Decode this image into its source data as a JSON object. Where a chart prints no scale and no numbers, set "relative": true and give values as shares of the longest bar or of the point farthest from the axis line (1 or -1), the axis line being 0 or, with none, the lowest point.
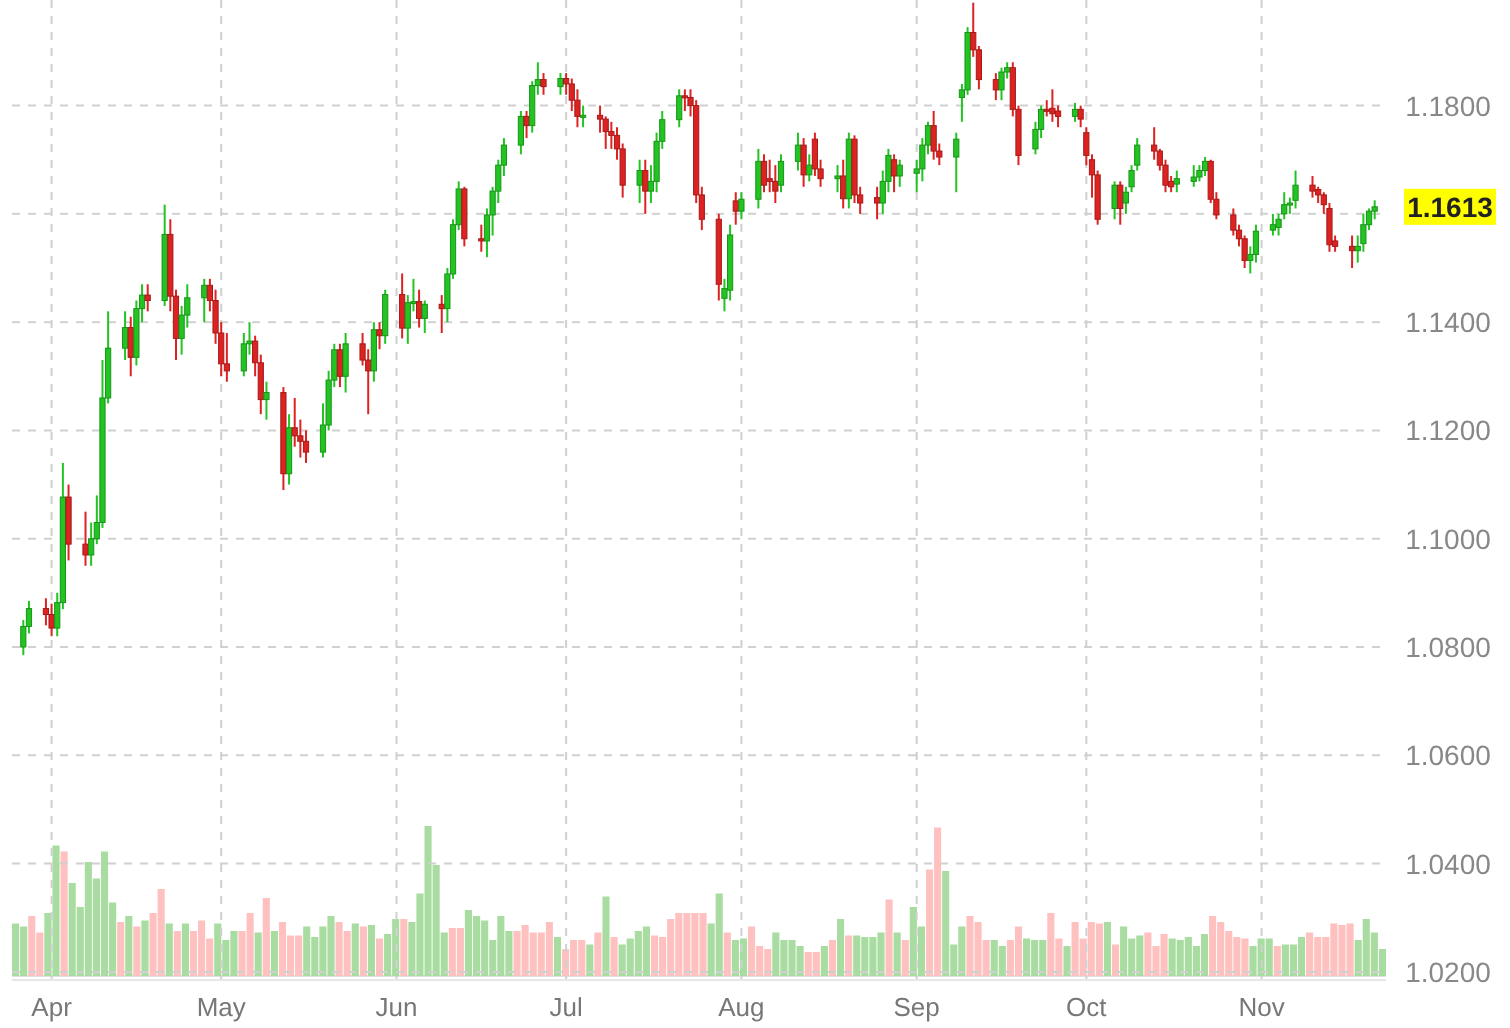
{
  "chart_data": [
    {
      "type": "candlestick",
      "x": [
        "--03-27",
        "--03-28",
        "--03-31",
        "--04-01",
        "--04-02",
        "--04-03",
        "--04-04",
        "--04-07",
        "--04-08",
        "--04-09",
        "--04-10",
        "--04-11",
        "--04-14",
        "--04-15",
        "--04-16",
        "--04-17",
        "--04-18",
        "--04-21",
        "--04-22",
        "--04-23",
        "--04-24",
        "--04-25",
        "--04-28",
        "--04-29",
        "--04-30",
        "--05-01",
        "--05-02",
        "--05-05",
        "--05-06",
        "--05-07",
        "--05-08",
        "--05-09",
        "--05-12",
        "--05-13",
        "--05-14",
        "--05-15",
        "--05-16",
        "--05-19",
        "--05-20",
        "--05-21",
        "--05-22",
        "--05-23",
        "--05-26",
        "--05-27",
        "--05-28",
        "--05-29",
        "--05-30",
        "--06-02",
        "--06-03",
        "--06-04",
        "--06-05",
        "--06-06",
        "--06-09",
        "--06-10",
        "--06-11",
        "--06-12",
        "--06-13",
        "--06-16",
        "--06-17",
        "--06-18",
        "--06-19",
        "--06-20",
        "--06-23",
        "--06-24",
        "--06-25",
        "--06-26",
        "--06-27",
        "--06-30",
        "--07-01",
        "--07-02",
        "--07-03",
        "--07-04",
        "--07-07",
        "--07-08",
        "--07-09",
        "--07-10",
        "--07-11",
        "--07-14",
        "--07-15",
        "--07-16",
        "--07-17",
        "--07-18",
        "--07-21",
        "--07-22",
        "--07-23",
        "--07-24",
        "--07-25",
        "--07-28",
        "--07-29",
        "--07-30",
        "--07-31",
        "--08-01",
        "--08-04",
        "--08-05",
        "--08-06",
        "--08-07",
        "--08-08",
        "--08-11",
        "--08-12",
        "--08-13",
        "--08-14",
        "--08-15",
        "--08-18",
        "--08-19",
        "--08-20",
        "--08-21",
        "--08-22",
        "--08-25",
        "--08-26",
        "--08-27",
        "--08-28",
        "--08-29",
        "--09-01",
        "--09-02",
        "--09-03",
        "--09-04",
        "--09-05",
        "--09-08",
        "--09-09",
        "--09-10",
        "--09-11",
        "--09-12",
        "--09-15",
        "--09-16",
        "--09-17",
        "--09-18",
        "--09-19",
        "--09-22",
        "--09-23",
        "--09-24",
        "--09-25",
        "--09-26",
        "--09-29",
        "--09-30",
        "--10-01",
        "--10-02",
        "--10-03",
        "--10-06",
        "--10-07",
        "--10-08",
        "--10-09",
        "--10-10",
        "--10-13",
        "--10-14",
        "--10-15",
        "--10-16",
        "--10-17",
        "--10-20",
        "--10-21",
        "--10-22",
        "--10-23",
        "--10-24",
        "--10-27",
        "--10-28",
        "--10-29",
        "--10-30",
        "--10-31",
        "--11-03",
        "--11-04",
        "--11-05",
        "--11-06",
        "--11-07",
        "--11-10",
        "--11-11",
        "--11-12",
        "--11-13",
        "--11-14",
        "--11-17",
        "--11-18",
        "--11-19",
        "--11-20",
        "--11-21"
      ],
      "ohlc": [
        [
          1.08,
          1.085,
          1.0785,
          1.0838
        ],
        [
          1.0838,
          1.0885,
          1.0825,
          1.0871
        ],
        [
          1.0871,
          1.089,
          1.084,
          1.086
        ],
        [
          1.086,
          1.088,
          1.082,
          1.0835
        ],
        [
          1.0835,
          1.09,
          1.082,
          1.0882
        ],
        [
          1.0882,
          1.114,
          1.087,
          1.1077
        ],
        [
          1.1077,
          1.11,
          1.096,
          1.099
        ],
        [
          1.099,
          1.105,
          1.095,
          1.097
        ],
        [
          1.097,
          1.103,
          1.095,
          1.1
        ],
        [
          1.1,
          1.108,
          1.099,
          1.103
        ],
        [
          1.103,
          1.133,
          1.102,
          1.126
        ],
        [
          1.126,
          1.142,
          1.125,
          1.1352
        ],
        [
          1.1352,
          1.142,
          1.133,
          1.139
        ],
        [
          1.139,
          1.141,
          1.13,
          1.1335
        ],
        [
          1.1335,
          1.144,
          1.132,
          1.1425
        ],
        [
          1.1425,
          1.147,
          1.14,
          1.145
        ],
        [
          1.145,
          1.147,
          1.142,
          1.144
        ],
        [
          1.144,
          1.1617,
          1.143,
          1.1562
        ],
        [
          1.1562,
          1.159,
          1.142,
          1.1448
        ],
        [
          1.1448,
          1.146,
          1.133,
          1.137
        ],
        [
          1.137,
          1.143,
          1.134,
          1.1413
        ],
        [
          1.1413,
          1.147,
          1.139,
          1.1445
        ],
        [
          1.1445,
          1.148,
          1.14,
          1.1468
        ],
        [
          1.1468,
          1.148,
          1.142,
          1.144
        ],
        [
          1.144,
          1.146,
          1.136,
          1.138
        ],
        [
          1.138,
          1.14,
          1.13,
          1.1323
        ],
        [
          1.1323,
          1.138,
          1.129,
          1.131
        ],
        [
          1.131,
          1.138,
          1.13,
          1.136
        ],
        [
          1.136,
          1.14,
          1.134,
          1.1365
        ],
        [
          1.1365,
          1.1375,
          1.13,
          1.1325
        ],
        [
          1.1325,
          1.134,
          1.123,
          1.1257
        ],
        [
          1.1257,
          1.129,
          1.122,
          1.127
        ],
        [
          1.127,
          1.128,
          1.109,
          1.112
        ],
        [
          1.112,
          1.123,
          1.11,
          1.1205
        ],
        [
          1.1205,
          1.126,
          1.117,
          1.119
        ],
        [
          1.119,
          1.122,
          1.115,
          1.118
        ],
        [
          1.118,
          1.12,
          1.114,
          1.116
        ],
        [
          1.116,
          1.125,
          1.115,
          1.121
        ],
        [
          1.121,
          1.131,
          1.12,
          1.1293
        ],
        [
          1.1293,
          1.136,
          1.128,
          1.1349
        ],
        [
          1.1349,
          1.136,
          1.128,
          1.13
        ],
        [
          1.13,
          1.138,
          1.127,
          1.136
        ],
        [
          1.136,
          1.138,
          1.132,
          1.133
        ],
        [
          1.133,
          1.135,
          1.123,
          1.131
        ],
        [
          1.131,
          1.14,
          1.129,
          1.1386
        ],
        [
          1.1386,
          1.14,
          1.135,
          1.1375
        ],
        [
          1.1375,
          1.146,
          1.136,
          1.1451
        ],
        [
          1.1451,
          1.149,
          1.137,
          1.1389
        ],
        [
          1.1389,
          1.145,
          1.136,
          1.1436
        ],
        [
          1.1436,
          1.148,
          1.142,
          1.1438
        ],
        [
          1.1438,
          1.146,
          1.139,
          1.1407
        ],
        [
          1.1407,
          1.144,
          1.138,
          1.1433
        ],
        [
          1.1433,
          1.145,
          1.138,
          1.1425
        ],
        [
          1.1425,
          1.15,
          1.14,
          1.1489
        ],
        [
          1.1489,
          1.159,
          1.148,
          1.158
        ],
        [
          1.158,
          1.166,
          1.157,
          1.1646
        ],
        [
          1.1646,
          1.165,
          1.154,
          1.1554
        ],
        [
          1.1554,
          1.158,
          1.153,
          1.155
        ],
        [
          1.155,
          1.161,
          1.152,
          1.1598
        ],
        [
          1.1598,
          1.165,
          1.156,
          1.1642
        ],
        [
          1.1642,
          1.17,
          1.162,
          1.169
        ],
        [
          1.169,
          1.174,
          1.167,
          1.1727
        ],
        [
          1.1727,
          1.179,
          1.171,
          1.178
        ],
        [
          1.178,
          1.179,
          1.174,
          1.1763
        ],
        [
          1.1763,
          1.1845,
          1.175,
          1.1837
        ],
        [
          1.1837,
          1.188,
          1.182,
          1.1848
        ],
        [
          1.1848,
          1.186,
          1.182,
          1.1835
        ],
        [
          1.1835,
          1.186,
          1.182,
          1.185
        ],
        [
          1.185,
          1.186,
          1.182,
          1.184
        ],
        [
          1.184,
          1.185,
          1.179,
          1.181
        ],
        [
          1.181,
          1.183,
          1.176,
          1.178
        ],
        [
          1.178,
          1.18,
          1.176,
          1.1782
        ],
        [
          1.1782,
          1.18,
          1.175,
          1.1775
        ],
        [
          1.1775,
          1.178,
          1.172,
          1.1752
        ],
        [
          1.1752,
          1.177,
          1.172,
          1.1745
        ],
        [
          1.1745,
          1.176,
          1.17,
          1.172
        ],
        [
          1.172,
          1.173,
          1.163,
          1.1653
        ],
        [
          1.1653,
          1.17,
          1.162,
          1.168
        ],
        [
          1.168,
          1.17,
          1.16,
          1.1642
        ],
        [
          1.1642,
          1.169,
          1.162,
          1.166
        ],
        [
          1.166,
          1.175,
          1.164,
          1.1734
        ],
        [
          1.1734,
          1.179,
          1.172,
          1.1774
        ],
        [
          1.1774,
          1.183,
          1.176,
          1.1818
        ],
        [
          1.1818,
          1.183,
          1.179,
          1.1815
        ],
        [
          1.1815,
          1.183,
          1.178,
          1.18
        ],
        [
          1.18,
          1.181,
          1.162,
          1.1635
        ],
        [
          1.1635,
          1.165,
          1.157,
          1.159
        ],
        [
          1.159,
          1.16,
          1.144,
          1.147
        ],
        [
          1.1444,
          1.148,
          1.142,
          1.1462
        ],
        [
          1.1459,
          1.158,
          1.144,
          1.1561
        ],
        [
          1.1624,
          1.164,
          1.158,
          1.1605
        ],
        [
          1.1605,
          1.164,
          1.159,
          1.1627
        ],
        [
          1.1627,
          1.172,
          1.161,
          1.1697
        ],
        [
          1.1697,
          1.171,
          1.164,
          1.1653
        ],
        [
          1.1665,
          1.17,
          1.164,
          1.166
        ],
        [
          1.166,
          1.169,
          1.162,
          1.1642
        ],
        [
          1.1653,
          1.171,
          1.164,
          1.1697
        ],
        [
          1.1697,
          1.175,
          1.168,
          1.1727
        ],
        [
          1.1727,
          1.174,
          1.165,
          1.1672
        ],
        [
          1.1672,
          1.171,
          1.166,
          1.169
        ],
        [
          1.1738,
          1.175,
          1.167,
          1.1683
        ],
        [
          1.1683,
          1.17,
          1.165,
          1.1665
        ],
        [
          1.1665,
          1.169,
          1.164,
          1.167
        ],
        [
          1.167,
          1.17,
          1.161,
          1.1628
        ],
        [
          1.1628,
          1.175,
          1.161,
          1.1738
        ],
        [
          1.1738,
          1.1745,
          1.162,
          1.1635
        ],
        [
          1.1635,
          1.165,
          1.16,
          1.162
        ],
        [
          1.163,
          1.165,
          1.159,
          1.162
        ],
        [
          1.162,
          1.168,
          1.16,
          1.166
        ],
        [
          1.166,
          1.172,
          1.164,
          1.1708
        ],
        [
          1.17,
          1.171,
          1.164,
          1.167
        ],
        [
          1.167,
          1.17,
          1.165,
          1.169
        ],
        [
          1.1675,
          1.17,
          1.164,
          1.1683
        ],
        [
          1.1683,
          1.174,
          1.166,
          1.1727
        ],
        [
          1.1727,
          1.177,
          1.171,
          1.1763
        ],
        [
          1.1763,
          1.179,
          1.17,
          1.1716
        ],
        [
          1.1716,
          1.173,
          1.169,
          1.1705
        ],
        [
          1.1705,
          1.175,
          1.164,
          1.1738
        ],
        [
          1.1815,
          1.184,
          1.177,
          1.1829
        ],
        [
          1.1829,
          1.1945,
          1.182,
          1.1935
        ],
        [
          1.1935,
          1.199,
          1.189,
          1.1903
        ],
        [
          1.1903,
          1.191,
          1.183,
          1.1848
        ],
        [
          1.1848,
          1.186,
          1.181,
          1.1829
        ],
        [
          1.1829,
          1.187,
          1.181,
          1.1862
        ],
        [
          1.1862,
          1.188,
          1.185,
          1.187
        ],
        [
          1.187,
          1.188,
          1.178,
          1.1793
        ],
        [
          1.1793,
          1.18,
          1.169,
          1.1708
        ],
        [
          1.172,
          1.177,
          1.171,
          1.1756
        ],
        [
          1.1756,
          1.18,
          1.174,
          1.1793
        ],
        [
          1.1793,
          1.181,
          1.178,
          1.179
        ],
        [
          1.1795,
          1.183,
          1.177,
          1.1785
        ],
        [
          1.179,
          1.18,
          1.176,
          1.178
        ],
        [
          1.178,
          1.1805,
          1.177,
          1.1793
        ],
        [
          1.1793,
          1.18,
          1.176,
          1.1775
        ],
        [
          1.175,
          1.176,
          1.169,
          1.1708
        ],
        [
          1.17,
          1.171,
          1.163,
          1.1672
        ],
        [
          1.1672,
          1.168,
          1.158,
          1.159
        ],
        [
          1.161,
          1.166,
          1.159,
          1.1653
        ],
        [
          1.1653,
          1.166,
          1.158,
          1.161
        ],
        [
          1.162,
          1.165,
          1.16,
          1.164
        ],
        [
          1.165,
          1.169,
          1.164,
          1.168
        ],
        [
          1.169,
          1.174,
          1.168,
          1.1727
        ],
        [
          1.1727,
          1.176,
          1.17,
          1.1716
        ],
        [
          1.1716,
          1.172,
          1.168,
          1.169
        ],
        [
          1.169,
          1.17,
          1.164,
          1.1653
        ],
        [
          1.166,
          1.167,
          1.164,
          1.165
        ],
        [
          1.1655,
          1.168,
          1.164,
          1.1665
        ],
        [
          1.166,
          1.169,
          1.165,
          1.1668
        ],
        [
          1.1668,
          1.169,
          1.166,
          1.168
        ],
        [
          1.168,
          1.1705,
          1.167,
          1.1697
        ],
        [
          1.1697,
          1.17,
          1.162,
          1.1627
        ],
        [
          1.1627,
          1.164,
          1.159,
          1.1598
        ],
        [
          1.1598,
          1.161,
          1.156,
          1.157
        ],
        [
          1.157,
          1.158,
          1.154,
          1.1554
        ],
        [
          1.1554,
          1.156,
          1.15,
          1.1514
        ],
        [
          1.1514,
          1.154,
          1.149,
          1.1525
        ],
        [
          1.1525,
          1.158,
          1.151,
          1.1568
        ],
        [
          1.157,
          1.16,
          1.156,
          1.158
        ],
        [
          1.1575,
          1.16,
          1.156,
          1.159
        ],
        [
          1.16,
          1.164,
          1.159,
          1.1617
        ],
        [
          1.1617,
          1.163,
          1.16,
          1.162
        ],
        [
          1.1625,
          1.168,
          1.161,
          1.1653
        ],
        [
          1.1653,
          1.167,
          1.163,
          1.1642
        ],
        [
          1.1645,
          1.165,
          1.162,
          1.1635
        ],
        [
          1.1635,
          1.164,
          1.16,
          1.1617
        ],
        [
          1.161,
          1.162,
          1.153,
          1.1543
        ],
        [
          1.155,
          1.156,
          1.153,
          1.154
        ],
        [
          1.154,
          1.156,
          1.15,
          1.1532
        ],
        [
          1.1532,
          1.156,
          1.151,
          1.154
        ],
        [
          1.1545,
          1.16,
          1.153,
          1.158
        ],
        [
          1.158,
          1.161,
          1.157,
          1.1605
        ],
        [
          1.1605,
          1.1625,
          1.159,
          1.1613
        ]
      ],
      "xlim": [
        "--03-25",
        "--11-23"
      ],
      "xticks": [
        {
          "value": "--04-01",
          "label": "Apr"
        },
        {
          "value": "--05-01",
          "label": "May"
        },
        {
          "value": "--06-01",
          "label": "Jun"
        },
        {
          "value": "--07-01",
          "label": "Jul"
        },
        {
          "value": "--08-01",
          "label": "Aug"
        },
        {
          "value": "--09-01",
          "label": "Sep"
        },
        {
          "value": "--10-01",
          "label": "Oct"
        },
        {
          "value": "--11-01",
          "label": "Nov"
        }
      ],
      "ylim": [
        1.0185,
        1.1995
      ],
      "yticks": [
        {
          "value": 1.02,
          "label": "1.0200"
        },
        {
          "value": 1.04,
          "label": "1.0400"
        },
        {
          "value": 1.06,
          "label": "1.0600"
        },
        {
          "value": 1.08,
          "label": "1.0800"
        },
        {
          "value": 1.1,
          "label": "1.1000"
        },
        {
          "value": 1.12,
          "label": "1.1200"
        },
        {
          "value": 1.14,
          "label": "1.1400"
        },
        {
          "value": 1.16,
          "label": null
        },
        {
          "value": 1.18,
          "label": "1.1800"
        }
      ],
      "grid": true,
      "annotations": [
        {
          "text": "1.1613",
          "x": "--11-21",
          "y": 1.1613
        }
      ]
    },
    {
      "type": "bar",
      "relative": true,
      "categories": [
        null,
        null,
        null,
        null,
        null,
        null,
        null,
        null,
        null,
        null,
        null,
        null,
        null,
        null,
        null,
        null,
        null,
        null,
        null,
        null,
        null,
        null,
        null,
        null,
        null,
        null,
        null,
        null,
        null,
        null,
        null,
        null,
        null,
        null,
        null,
        null,
        null,
        null,
        null,
        null,
        null,
        null,
        null,
        null,
        null,
        null,
        null,
        null,
        null,
        null,
        null,
        null,
        null,
        null,
        null,
        null,
        null,
        null,
        null,
        null,
        null,
        null,
        null,
        null,
        null,
        null,
        null,
        null,
        null,
        null,
        null,
        null,
        null,
        null,
        null,
        null,
        null,
        null,
        null,
        null,
        null,
        null,
        null,
        null,
        null,
        null,
        null,
        null,
        null,
        null,
        null,
        null,
        null,
        null,
        null,
        null,
        null,
        null,
        null,
        null,
        null,
        null,
        null,
        null,
        null,
        null,
        null,
        null,
        null,
        null,
        null,
        null,
        null,
        null,
        null,
        null,
        null,
        null,
        null,
        null,
        null,
        null,
        null,
        null,
        null,
        null,
        null,
        null,
        null,
        null,
        null,
        null,
        null,
        null,
        null,
        null,
        null,
        null,
        null,
        null,
        null,
        null,
        null,
        null,
        null,
        null,
        null,
        null,
        null,
        null,
        null,
        null,
        null,
        null,
        null,
        null,
        null,
        null,
        null,
        null,
        null,
        null,
        null,
        null,
        null,
        null,
        null,
        null,
        null,
        null
      ],
      "values": [
        0.35,
        0.33,
        0.4,
        0.29,
        0.42,
        0.87,
        0.83,
        0.62,
        0.46,
        0.76,
        0.65,
        0.83,
        0.49,
        0.36,
        0.4,
        0.33,
        0.37,
        0.42,
        0.58,
        0.35,
        0.3,
        0.35,
        0.3,
        0.37,
        0.25,
        0.35,
        0.24,
        0.3,
        0.3,
        0.42,
        0.29,
        0.52,
        0.3,
        0.36,
        0.27,
        0.27,
        0.33,
        0.26,
        0.33,
        0.4,
        0.36,
        0.3,
        0.35,
        0.33,
        0.34,
        0.25,
        0.28,
        0.38,
        0.38,
        0.36,
        0.55,
        1,
        0.74,
        0.29,
        0.32,
        0.32,
        0.44,
        0.4,
        0.37,
        0.24,
        0.4,
        0.3,
        0.3,
        0.34,
        0.29,
        0.29,
        0.36,
        0.26,
        0.18,
        0.24,
        0.24,
        0.21,
        0.29,
        0.53,
        0.26,
        0.21,
        0.25,
        0.3,
        0.33,
        0.27,
        0.26,
        0.38,
        0.42,
        0.42,
        0.42,
        0.42,
        0.35,
        0.55,
        0.29,
        0.24,
        0.25,
        0.33,
        0.2,
        0.18,
        0.29,
        0.24,
        0.24,
        0.2,
        0.16,
        0.16,
        0.2,
        0.24,
        0.38,
        0.27,
        0.27,
        0.26,
        0.26,
        0.29,
        0.51,
        0.29,
        0.24,
        0.46,
        0.33,
        0.71,
        0.99,
        0.7,
        0.21,
        0.33,
        0.4,
        0.36,
        0.24,
        0.24,
        0.2,
        0.24,
        0.33,
        0.25,
        0.24,
        0.24,
        0.42,
        0.25,
        0.2,
        0.36,
        0.25,
        0.36,
        0.35,
        0.36,
        0.21,
        0.33,
        0.25,
        0.27,
        0.29,
        0.2,
        0.28,
        0.25,
        0.24,
        0.26,
        0.2,
        0.28,
        0.4,
        0.36,
        0.3,
        0.26,
        0.25,
        0.2,
        0.25,
        0.25,
        0.2,
        0.21,
        0.21,
        0.26,
        0.29,
        0.26,
        0.26,
        0.35,
        0.34,
        0.35,
        0.24,
        0.38,
        0.29,
        0.18
      ],
      "colors": [
        "#a8dca0",
        "#a8dca0",
        "#ffc0c0",
        "#ffc0c0",
        "#a8dca0",
        "#a8dca0",
        "#ffc0c0",
        "#a8dca0",
        "#a8dca0",
        "#a8dca0",
        "#a8dca0",
        "#a8dca0",
        "#a8dca0",
        "#ffc0c0",
        "#a8dca0",
        "#ffc0c0",
        "#a8dca0",
        "#ffc0c0",
        "#ffc0c0",
        "#a8dca0",
        "#ffc0c0",
        "#a8dca0",
        "#ffc0c0",
        "#ffc0c0",
        "#ffc0c0",
        "#a8dca0",
        "#a8dca0",
        "#a8dca0",
        "#ffc0c0",
        "#ffc0c0",
        "#a8dca0",
        "#ffc0c0",
        "#a8dca0",
        "#ffc0c0",
        "#ffc0c0",
        "#ffc0c0",
        "#a8dca0",
        "#a8dca0",
        "#a8dca0",
        "#a8dca0",
        "#ffc0c0",
        "#ffc0c0",
        "#a8dca0",
        "#ffc0c0",
        "#a8dca0",
        "#ffc0c0",
        "#a8dca0",
        "#a8dca0",
        "#ffc0c0",
        "#a8dca0",
        "#a8dca0",
        "#a8dca0",
        "#a8dca0",
        "#a8dca0",
        "#ffc0c0",
        "#ffc0c0",
        "#a8dca0",
        "#a8dca0",
        "#a8dca0",
        "#a8dca0",
        "#a8dca0",
        "#a8dca0",
        "#ffc0c0",
        "#ffc0c0",
        "#ffc0c0",
        "#ffc0c0",
        "#ffc0c0",
        "#a8dca0",
        "#ffc0c0",
        "#ffc0c0",
        "#ffc0c0",
        "#a8dca0",
        "#ffc0c0",
        "#a8dca0",
        "#ffc0c0",
        "#a8dca0",
        "#a8dca0",
        "#a8dca0",
        "#a8dca0",
        "#ffc0c0",
        "#ffc0c0",
        "#ffc0c0",
        "#ffc0c0",
        "#ffc0c0",
        "#ffc0c0",
        "#ffc0c0",
        "#a8dca0",
        "#a8dca0",
        "#ffc0c0",
        "#a8dca0",
        "#a8dca0",
        "#ffc0c0",
        "#ffc0c0",
        "#ffc0c0",
        "#a8dca0",
        "#a8dca0",
        "#a8dca0",
        "#a8dca0",
        "#ffc0c0",
        "#ffc0c0",
        "#a8dca0",
        "#ffc0c0",
        "#a8dca0",
        "#ffc0c0",
        "#a8dca0",
        "#a8dca0",
        "#a8dca0",
        "#a8dca0",
        "#ffc0c0",
        "#a8dca0",
        "#ffc0c0",
        "#a8dca0",
        "#a8dca0",
        "#ffc0c0",
        "#ffc0c0",
        "#a8dca0",
        "#a8dca0",
        "#a8dca0",
        "#ffc0c0",
        "#ffc0c0",
        "#ffc0c0",
        "#a8dca0",
        "#a8dca0",
        "#ffc0c0",
        "#ffc0c0",
        "#a8dca0",
        "#a8dca0",
        "#a8dca0",
        "#ffc0c0",
        "#ffc0c0",
        "#a8dca0",
        "#ffc0c0",
        "#ffc0c0",
        "#ffc0c0",
        "#ffc0c0",
        "#a8dca0",
        "#ffc0c0",
        "#a8dca0",
        "#a8dca0",
        "#a8dca0",
        "#ffc0c0",
        "#ffc0c0",
        "#ffc0c0",
        "#a8dca0",
        "#a8dca0",
        "#a8dca0",
        "#a8dca0",
        "#a8dca0",
        "#ffc0c0",
        "#ffc0c0",
        "#ffc0c0",
        "#ffc0c0",
        "#ffc0c0",
        "#a8dca0",
        "#a8dca0",
        "#a8dca0",
        "#ffc0c0",
        "#a8dca0",
        "#a8dca0",
        "#a8dca0",
        "#ffc0c0",
        "#ffc0c0",
        "#ffc0c0",
        "#ffc0c0",
        "#ffc0c0",
        "#ffc0c0",
        "#a8dca0",
        "#a8dca0",
        "#a8dca0",
        "#a8dca0"
      ]
    }
  ]
}
